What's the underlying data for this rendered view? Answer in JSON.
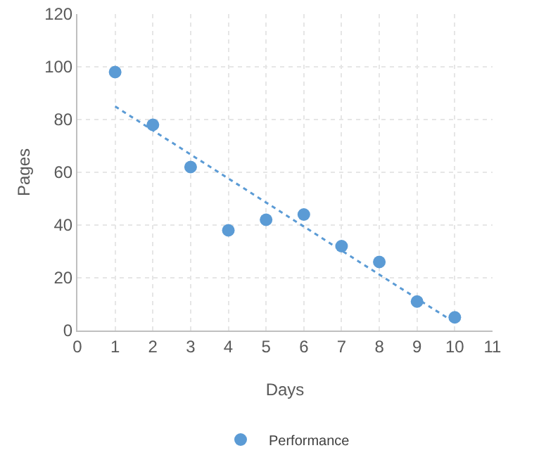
{
  "chart_data": {
    "type": "scatter",
    "xlabel": "Days",
    "ylabel": "Pages",
    "xlim": [
      0,
      11
    ],
    "xticks": [
      0,
      1,
      2,
      3,
      4,
      5,
      6,
      7,
      8,
      9,
      10,
      11
    ],
    "ylim": [
      0,
      120
    ],
    "yticks": [
      0,
      20,
      40,
      60,
      80,
      100,
      120
    ],
    "grid": true,
    "legend": "bottom",
    "series": [
      {
        "name": "Performance",
        "color": "#5b9bd5",
        "marker": "circle",
        "x": [
          1,
          2,
          3,
          4,
          5,
          6,
          7,
          8,
          9,
          10
        ],
        "values": [
          98,
          78,
          62,
          38,
          42,
          44,
          32,
          26,
          11,
          5
        ]
      },
      {
        "type": "line",
        "color": "#5b9bd5",
        "line_style": "dotted",
        "marker": "none",
        "x": [
          1,
          10
        ],
        "values": [
          85,
          3
        ]
      }
    ]
  }
}
